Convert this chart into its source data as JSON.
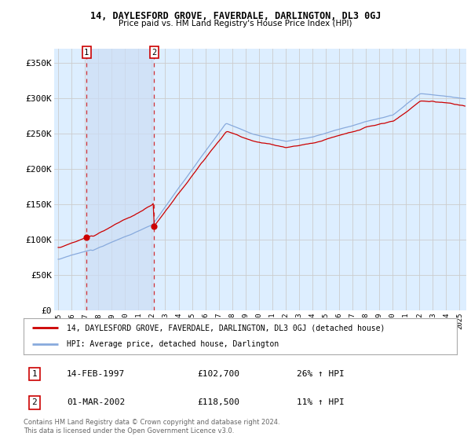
{
  "title": "14, DAYLESFORD GROVE, FAVERDALE, DARLINGTON, DL3 0GJ",
  "subtitle": "Price paid vs. HM Land Registry's House Price Index (HPI)",
  "ylim": [
    0,
    370000
  ],
  "yticks": [
    0,
    50000,
    100000,
    150000,
    200000,
    250000,
    300000,
    350000
  ],
  "ytick_labels": [
    "£0",
    "£50K",
    "£100K",
    "£150K",
    "£200K",
    "£250K",
    "£300K",
    "£350K"
  ],
  "xlim_start": 1994.7,
  "xlim_end": 2025.5,
  "sale1": {
    "date": 1997.12,
    "price": 102700,
    "label": "1",
    "pct": "26% ↑ HPI",
    "date_str": "14-FEB-1997"
  },
  "sale2": {
    "date": 2002.17,
    "price": 118500,
    "label": "2",
    "pct": "11% ↑ HPI",
    "date_str": "01-MAR-2002"
  },
  "legend_line1": "14, DAYLESFORD GROVE, FAVERDALE, DARLINGTON, DL3 0GJ (detached house)",
  "legend_line2": "HPI: Average price, detached house, Darlington",
  "footer": "Contains HM Land Registry data © Crown copyright and database right 2024.\nThis data is licensed under the Open Government Licence v3.0.",
  "bg_color": "#ddeeff",
  "shade_color": "#ccddf5",
  "grid_color": "#cccccc",
  "property_color": "#cc0000",
  "hpi_color": "#88aadd",
  "vline_color": "#cc0000",
  "fig_bg": "#ffffff"
}
